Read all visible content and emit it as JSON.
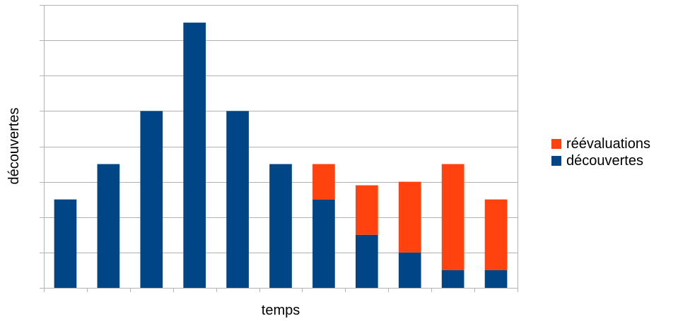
{
  "chart_data": {
    "type": "bar",
    "stacked": true,
    "title": "",
    "xlabel": "temps",
    "ylabel": "découvertes",
    "categories": [
      "",
      "",
      "",
      "",
      "",
      "",
      "",
      "",
      "",
      "",
      ""
    ],
    "ylim": [
      0,
      8
    ],
    "y_tick_step": 1,
    "show_tick_labels": false,
    "grid": true,
    "legend_position": "right",
    "series": [
      {
        "name": "découvertes",
        "color": "#004586",
        "values": [
          2.5,
          3.5,
          5,
          7.5,
          5,
          3.5,
          2.5,
          1.5,
          1,
          0.5,
          0.5
        ]
      },
      {
        "name": "réévaluations",
        "color": "#ff420e",
        "values": [
          0,
          0,
          0,
          0,
          0,
          0,
          1,
          1.4,
          2,
          3,
          2
        ]
      }
    ],
    "legend": [
      "réévaluations",
      "découvertes"
    ]
  }
}
